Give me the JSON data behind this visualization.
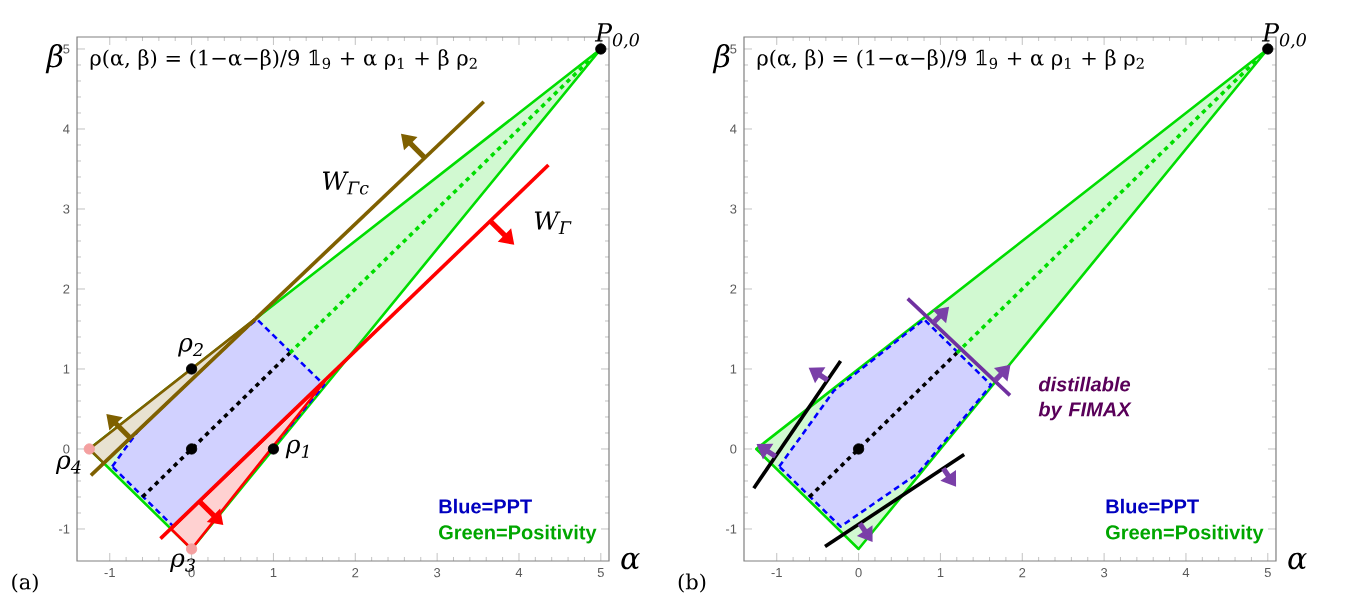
{
  "chart_data": [
    {
      "type": "line",
      "xlabel": "α",
      "ylabel": "β",
      "xlim": [
        -1.4,
        5.1
      ],
      "ylim": [
        -1.4,
        5.15
      ],
      "xticks": [
        -1,
        0,
        1,
        2,
        3,
        4,
        5
      ],
      "yticks": [
        -1,
        0,
        1,
        2,
        3,
        4,
        5
      ],
      "legend": "bottom right",
      "series": [
        {
          "type": "area",
          "name": "Green=Positivity",
          "color": "#00dd00",
          "x": [
            5,
            -1.25,
            0
          ],
          "values": [
            5,
            0,
            -1.25
          ]
        },
        {
          "type": "area",
          "name": "Blue=PPT",
          "color": "#0000ff",
          "line_style": "dashed",
          "x": [
            -0.97,
            -0.3,
            0.8,
            1.62,
            0.73,
            -0.22
          ],
          "values": [
            -0.22,
            0.73,
            1.62,
            0.8,
            -0.3,
            -0.97
          ]
        },
        {
          "type": "area",
          "color": "#7f6000",
          "x": [
            -1.25,
            0.77,
            -1.07
          ],
          "values": [
            0,
            1.62,
            -0.18
          ]
        },
        {
          "type": "area",
          "color": "#ff0000",
          "x": [
            -0.25,
            0,
            1.63
          ],
          "values": [
            -1.0,
            -1.25,
            0.85
          ]
        },
        {
          "color": "#00dd00",
          "line_style": "dotted",
          "x": [
            1.2,
            5
          ],
          "values": [
            1.2,
            5
          ]
        },
        {
          "color": "#000000",
          "line_style": "dotted",
          "x": [
            -0.6,
            1.2
          ],
          "values": [
            -0.6,
            1.2
          ]
        },
        {
          "color": "#7f6000",
          "x": [
            -1.23,
            3.57
          ],
          "values": [
            -0.33,
            4.34
          ]
        },
        {
          "color": "#ff0000",
          "x": [
            -0.38,
            4.36
          ],
          "values": [
            -1.12,
            3.55
          ]
        },
        {
          "type": "scatter",
          "color": "#f4a0a0",
          "x": [
            -1.25,
            0
          ],
          "values": [
            0,
            -1.25
          ]
        },
        {
          "type": "scatter",
          "color": "#000000",
          "x": [
            0,
            1,
            0,
            5
          ],
          "values": [
            0,
            0,
            1,
            5
          ]
        }
      ],
      "annotations": [
        "ρ(α, β) = (1−α−β)/9 𝟙$_{9}$ + α ρ$_{1}$ + β ρ$_{2}$",
        "(a)",
        {
          "text": "P$_{0,0}$",
          "x": 5,
          "y": 5
        },
        {
          "text": "ρ$_{1}$",
          "x": 1,
          "y": 0
        },
        {
          "text": "ρ$_{2}$",
          "x": 0,
          "y": 1
        },
        {
          "text": "ρ$_{3}$",
          "x": 0,
          "y": -1.25
        },
        {
          "text": "ρ$_{4}$",
          "x": -1.25,
          "y": 0
        },
        {
          "text": "W$_{Γc}$",
          "x": 2.6,
          "y": 3.4
        },
        {
          "text": "W$_{Γ}$",
          "x": 3.9,
          "y": 3.1
        }
      ]
    },
    {
      "type": "line",
      "xlabel": "α",
      "ylabel": "β",
      "xlim": [
        -1.4,
        5.1
      ],
      "ylim": [
        -1.4,
        5.15
      ],
      "xticks": [
        -1,
        0,
        1,
        2,
        3,
        4,
        5
      ],
      "yticks": [
        -1,
        0,
        1,
        2,
        3,
        4,
        5
      ],
      "legend": "bottom right",
      "series": [
        {
          "type": "area",
          "name": "Green=Positivity",
          "color": "#00dd00",
          "x": [
            5,
            -1.25,
            0
          ],
          "values": [
            5,
            0,
            -1.25
          ]
        },
        {
          "type": "area",
          "name": "Blue=PPT",
          "color": "#0000ff",
          "line_style": "dashed",
          "x": [
            -0.97,
            -0.3,
            0.8,
            1.62,
            0.73,
            -0.22
          ],
          "values": [
            -0.22,
            0.73,
            1.62,
            0.8,
            -0.3,
            -0.97
          ]
        },
        {
          "color": "#00dd00",
          "line_style": "dotted",
          "x": [
            1.2,
            5
          ],
          "values": [
            1.2,
            5
          ]
        },
        {
          "color": "#000000",
          "line_style": "dotted",
          "x": [
            -0.6,
            1.2
          ],
          "values": [
            -0.6,
            1.2
          ]
        },
        {
          "color": "#7030a0",
          "x": [
            0.6,
            1.85
          ],
          "values": [
            1.88,
            0.67
          ]
        },
        {
          "color": "#000000",
          "x": [
            -1.28,
            -0.22
          ],
          "values": [
            -0.49,
            1.1
          ]
        },
        {
          "color": "#000000",
          "x": [
            -0.41,
            1.29
          ],
          "values": [
            -1.22,
            -0.07
          ]
        },
        {
          "type": "scatter",
          "color": "#000000",
          "x": [
            0,
            5
          ],
          "values": [
            0,
            5
          ]
        }
      ],
      "annotations": [
        "ρ(α, β) = (1−α−β)/9 𝟙$_{9}$ + α ρ$_{1}$ + β ρ$_{2}$",
        "(b)",
        "distillable by FIMAX",
        {
          "text": "P$_{0,0}$",
          "x": 5,
          "y": 5
        }
      ]
    }
  ]
}
